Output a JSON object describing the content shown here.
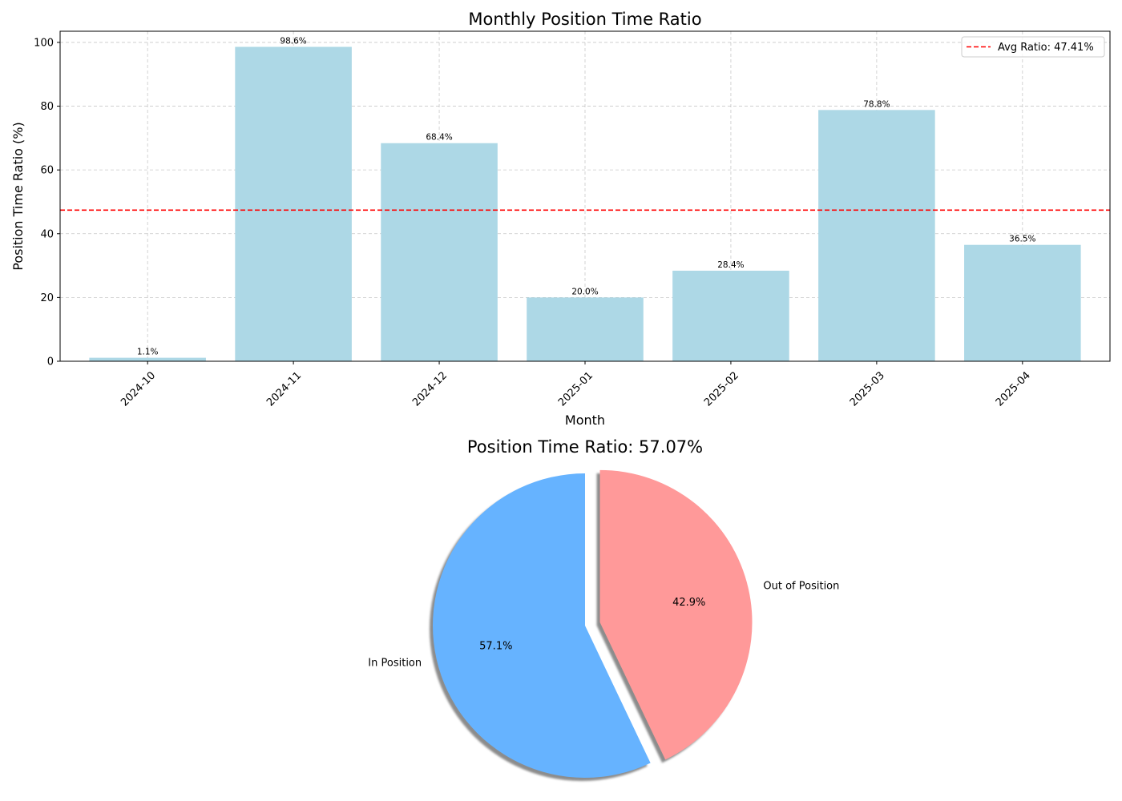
{
  "chart_data": [
    {
      "type": "bar",
      "title": "Monthly Position Time Ratio",
      "xlabel": "Month",
      "ylabel": "Position Time Ratio (%)",
      "categories": [
        "2024-10",
        "2024-11",
        "2024-12",
        "2025-01",
        "2025-02",
        "2025-03",
        "2025-04"
      ],
      "values": [
        1.1,
        98.6,
        68.4,
        20.0,
        28.4,
        78.8,
        36.5
      ],
      "value_labels": [
        "1.1%",
        "98.6%",
        "68.4%",
        "20.0%",
        "28.4%",
        "78.8%",
        "36.5%"
      ],
      "ylim": [
        0,
        103.5
      ],
      "yticks": [
        0,
        20,
        40,
        60,
        80,
        100
      ],
      "grid": true,
      "bar_color": "#add8e6",
      "reference_line": {
        "value": 47.41,
        "label": "Avg Ratio: 47.41%",
        "color": "#ff0000",
        "style": "dashed"
      },
      "legend": {
        "placement": "top-right",
        "entries": [
          "Avg Ratio: 47.41%"
        ]
      }
    },
    {
      "type": "pie",
      "title": "Position Time Ratio: 57.07%",
      "slices": [
        {
          "label": "In Position",
          "value": 57.07,
          "pct_label": "57.1%",
          "color": "#66b3ff",
          "exploded": false
        },
        {
          "label": "Out of Position",
          "value": 42.93,
          "pct_label": "42.9%",
          "color": "#ff9999",
          "exploded": true
        }
      ],
      "shadow": true,
      "start_angle": 90
    }
  ]
}
